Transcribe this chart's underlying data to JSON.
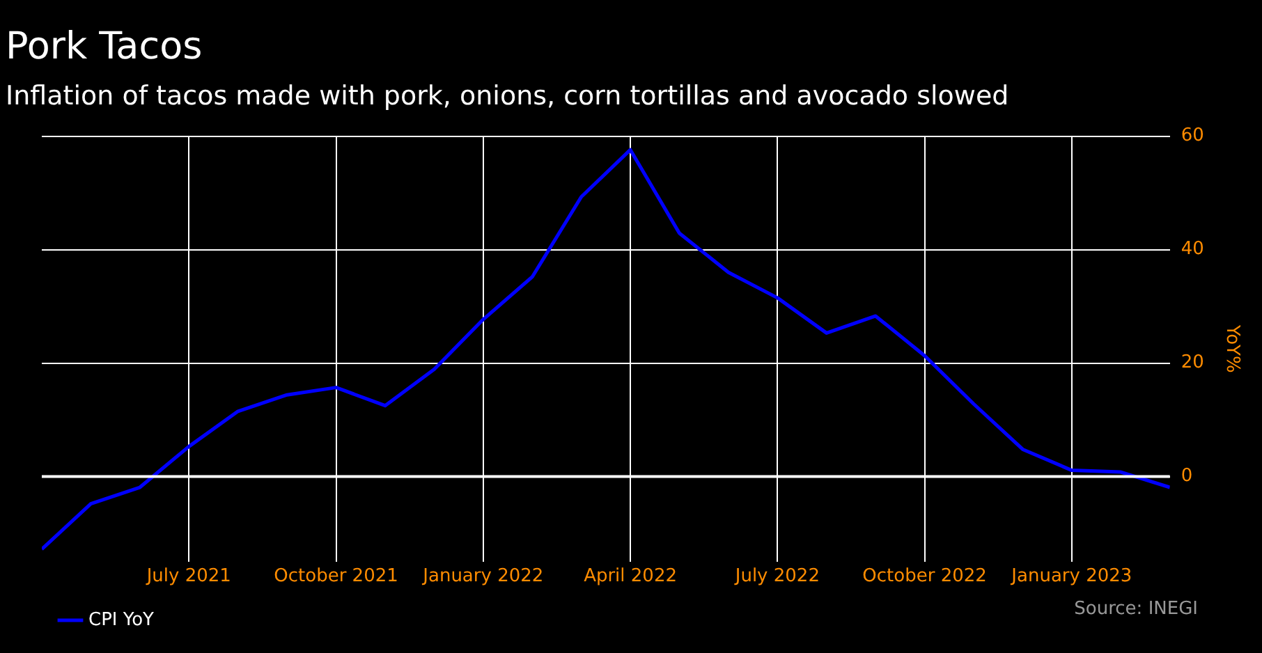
{
  "chart_data": {
    "type": "line",
    "title": "Pork Tacos",
    "subtitle": "Inflation of tacos made with pork, onions, corn tortillas and avocado slowed",
    "ylabel": "YoY%",
    "x": [
      "2021-04",
      "2021-05",
      "2021-06",
      "2021-07",
      "2021-08",
      "2021-09",
      "2021-10",
      "2021-11",
      "2021-12",
      "2022-01",
      "2022-02",
      "2022-03",
      "2022-04",
      "2022-05",
      "2022-06",
      "2022-07",
      "2022-08",
      "2022-09",
      "2022-10",
      "2022-11",
      "2022-12",
      "2023-01",
      "2023-02",
      "2023-03"
    ],
    "series": [
      {
        "name": "CPI YoY",
        "color": "#0000ff",
        "values": [
          -12.8,
          -4.8,
          -1.9,
          5.3,
          11.5,
          14.4,
          15.7,
          12.5,
          18.9,
          27.7,
          35.2,
          49.3,
          57.6,
          42.9,
          36,
          31.5,
          25.3,
          28.3,
          21.3,
          12.8,
          4.8,
          1.1,
          0.8,
          -1.9
        ]
      }
    ],
    "xlim": [
      "2021-04",
      "2023-03"
    ],
    "xticks": [
      {
        "value": "2021-07",
        "label": "July 2021"
      },
      {
        "value": "2021-10",
        "label": "October 2021"
      },
      {
        "value": "2022-01",
        "label": "January 2022"
      },
      {
        "value": "2022-04",
        "label": "April 2022"
      },
      {
        "value": "2022-07",
        "label": "July 2022"
      },
      {
        "value": "2022-10",
        "label": "October 2022"
      },
      {
        "value": "2023-01",
        "label": "January 2023"
      }
    ],
    "ylim": [
      -15,
      60
    ],
    "yticks": [
      0,
      20,
      40,
      60
    ],
    "ref_lines": [
      {
        "axis": "y",
        "value": 0,
        "color": "#ffffff"
      }
    ],
    "grid": true,
    "legend": "bottom left",
    "marker": "none",
    "line_style": "solid",
    "annotations": [
      "Source: INEGI"
    ]
  }
}
